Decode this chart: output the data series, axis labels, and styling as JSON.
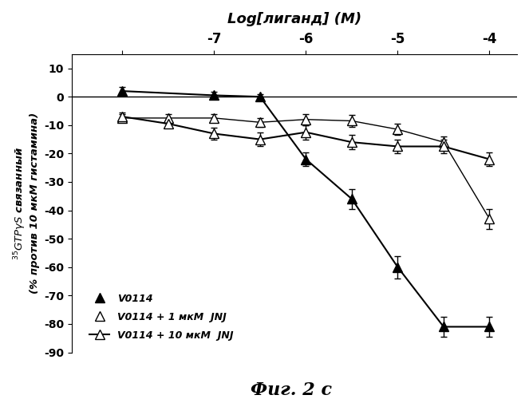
{
  "title": "Log[лиганд] (M)",
  "ylabel_line1": "$^{I}$GTPγS связанный",
  "ylabel_line2": "(% против 10 мкМ гистамина)",
  "caption": "Фиг. 2 c",
  "xlim": [
    -8.55,
    -3.7
  ],
  "ylim": [
    -90,
    15
  ],
  "xticks": [
    -8,
    -7,
    -6,
    -5,
    -4
  ],
  "xtick_labels": [
    "",
    "-7",
    "-6",
    "-5",
    "-4"
  ],
  "yticks": [
    -90,
    -80,
    -70,
    -60,
    -50,
    -40,
    -30,
    -20,
    -10,
    0,
    10
  ],
  "series1_label": "V0114",
  "series2_label": "V0114 + 1 мкМ  JNJ",
  "series3_label": "V0114 + 10 мкМ  JNJ",
  "s1_x": [
    -8.0,
    -7.0,
    -6.5,
    -6.0,
    -5.5,
    -5.0,
    -4.5,
    -4.0
  ],
  "s1_y": [
    2.0,
    0.5,
    0.0,
    -22.0,
    -36.0,
    -60.0,
    -81.0,
    -81.0
  ],
  "s1_err": [
    1.5,
    1.2,
    1.0,
    2.5,
    3.5,
    4.0,
    3.5,
    3.5
  ],
  "s2_x": [
    -8.0,
    -7.5,
    -7.0,
    -6.5,
    -6.0,
    -5.5,
    -5.0,
    -4.5,
    -4.0
  ],
  "s2_y": [
    -7.5,
    -7.5,
    -7.5,
    -9.0,
    -8.0,
    -8.5,
    -11.5,
    -16.0,
    -43.0
  ],
  "s2_err": [
    1.5,
    1.5,
    1.5,
    1.5,
    2.0,
    2.0,
    2.0,
    2.0,
    3.5
  ],
  "s3_x": [
    -8.0,
    -7.5,
    -7.0,
    -6.5,
    -6.0,
    -5.5,
    -5.0,
    -4.5,
    -4.0
  ],
  "s3_y": [
    -7.0,
    -9.5,
    -13.0,
    -15.0,
    -12.5,
    -16.0,
    -17.5,
    -17.5,
    -22.0
  ],
  "s3_err": [
    1.5,
    1.5,
    2.0,
    2.5,
    2.5,
    2.5,
    2.5,
    2.5,
    2.5
  ],
  "bg_color": "white",
  "figsize": [
    6.63,
    5.0
  ],
  "dpi": 100
}
